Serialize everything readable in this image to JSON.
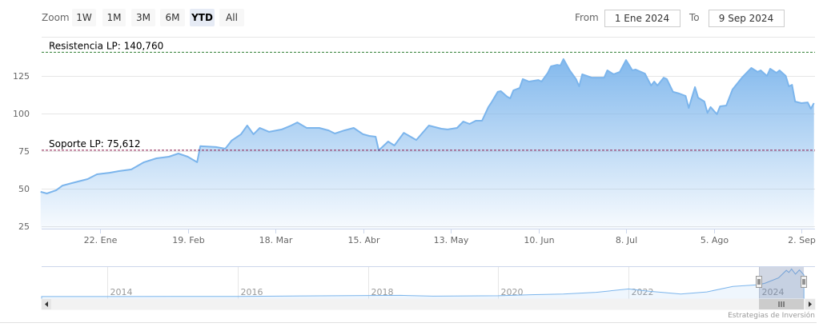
{
  "range_selector": {
    "zoom_label": "Zoom",
    "buttons": [
      {
        "label": "1W",
        "selected": false
      },
      {
        "label": "1M",
        "selected": false
      },
      {
        "label": "3M",
        "selected": false
      },
      {
        "label": "6M",
        "selected": false
      },
      {
        "label": "YTD",
        "selected": true
      },
      {
        "label": "All",
        "selected": false
      }
    ],
    "from_label": "From",
    "from_value": "1 Ene 2024",
    "to_label": "To",
    "to_value": "9 Sep 2024"
  },
  "credits": "Estrategias de Inversión",
  "colors": {
    "series": "#7cb5ec",
    "resistance": "#2e7d32",
    "support": "#8b1a4a",
    "selected_button": "#e6ebf5"
  },
  "chart_data": {
    "type": "area",
    "grid": true,
    "yticks": [
      25,
      50,
      75,
      100,
      125
    ],
    "ytick_labels": [
      "25",
      "50",
      "75",
      "100",
      "125"
    ],
    "xticks": [
      {
        "date": "2024-01-22",
        "label": "22. Ene"
      },
      {
        "date": "2024-02-19",
        "label": "19. Feb"
      },
      {
        "date": "2024-03-18",
        "label": "18. Mar"
      },
      {
        "date": "2024-04-15",
        "label": "15. Abr"
      },
      {
        "date": "2024-05-13",
        "label": "13. May"
      },
      {
        "date": "2024-06-10",
        "label": "10. Jun"
      },
      {
        "date": "2024-07-08",
        "label": "8. Jul"
      },
      {
        "date": "2024-08-05",
        "label": "5. Ago"
      },
      {
        "date": "2024-09-02",
        "label": "2. Sep"
      }
    ],
    "plot_lines": [
      {
        "label": "Resistencia LP: 140,760",
        "value": 140.76,
        "color": "#2e7d32"
      },
      {
        "label": "Soporte LP: 75,612",
        "value": 75.612,
        "color": "#8b1a4a"
      }
    ],
    "series": [
      {
        "points": [
          [
            "2024-01-03",
            47.9
          ],
          [
            "2024-01-05",
            46.8
          ],
          [
            "2024-01-08",
            49.0
          ],
          [
            "2024-01-10",
            52.1
          ],
          [
            "2024-01-13",
            53.7
          ],
          [
            "2024-01-16",
            55.3
          ],
          [
            "2024-01-18",
            56.4
          ],
          [
            "2024-01-21",
            59.6
          ],
          [
            "2024-01-25",
            60.6
          ],
          [
            "2024-01-28",
            61.7
          ],
          [
            "2024-02-01",
            62.8
          ],
          [
            "2024-02-05",
            67.6
          ],
          [
            "2024-02-09",
            70.2
          ],
          [
            "2024-02-13",
            71.3
          ],
          [
            "2024-02-16",
            73.4
          ],
          [
            "2024-02-19",
            71.3
          ],
          [
            "2024-02-22",
            67.6
          ],
          [
            "2024-02-23",
            78.3
          ],
          [
            "2024-02-28",
            77.7
          ],
          [
            "2024-03-02",
            76.6
          ],
          [
            "2024-03-04",
            82.0
          ],
          [
            "2024-03-07",
            86.2
          ],
          [
            "2024-03-09",
            92.0
          ],
          [
            "2024-03-11",
            86.2
          ],
          [
            "2024-03-13",
            90.4
          ],
          [
            "2024-03-16",
            87.8
          ],
          [
            "2024-03-20",
            89.4
          ],
          [
            "2024-03-23",
            92.0
          ],
          [
            "2024-03-25",
            94.1
          ],
          [
            "2024-03-28",
            90.4
          ],
          [
            "2024-04-01",
            90.4
          ],
          [
            "2024-04-04",
            88.8
          ],
          [
            "2024-04-06",
            86.7
          ],
          [
            "2024-04-09",
            88.8
          ],
          [
            "2024-04-12",
            90.4
          ],
          [
            "2024-04-15",
            86.2
          ],
          [
            "2024-04-17",
            85.1
          ],
          [
            "2024-04-19",
            84.6
          ],
          [
            "2024-04-20",
            75.5
          ],
          [
            "2024-04-23",
            81.4
          ],
          [
            "2024-04-25",
            78.7
          ],
          [
            "2024-04-28",
            87.2
          ],
          [
            "2024-05-02",
            82.4
          ],
          [
            "2024-05-06",
            92.0
          ],
          [
            "2024-05-10",
            89.9
          ],
          [
            "2024-05-12",
            89.4
          ],
          [
            "2024-05-15",
            90.4
          ],
          [
            "2024-05-17",
            94.7
          ],
          [
            "2024-05-19",
            93.1
          ],
          [
            "2024-05-21",
            95.2
          ],
          [
            "2024-05-23",
            95.2
          ],
          [
            "2024-05-25",
            104.3
          ],
          [
            "2024-05-26",
            107.4
          ],
          [
            "2024-05-28",
            114.4
          ],
          [
            "2024-05-29",
            114.9
          ],
          [
            "2024-05-31",
            111.2
          ],
          [
            "2024-06-01",
            110.1
          ],
          [
            "2024-06-02",
            115.4
          ],
          [
            "2024-06-04",
            117.0
          ],
          [
            "2024-06-05",
            122.9
          ],
          [
            "2024-06-07",
            121.3
          ],
          [
            "2024-06-10",
            122.3
          ],
          [
            "2024-06-11",
            121.3
          ],
          [
            "2024-06-13",
            127.1
          ],
          [
            "2024-06-14",
            131.4
          ],
          [
            "2024-06-16",
            132.4
          ],
          [
            "2024-06-17",
            131.9
          ],
          [
            "2024-06-18",
            136.2
          ],
          [
            "2024-06-20",
            128.7
          ],
          [
            "2024-06-22",
            122.9
          ],
          [
            "2024-06-23",
            118.1
          ],
          [
            "2024-06-24",
            126.1
          ],
          [
            "2024-06-27",
            123.9
          ],
          [
            "2024-07-01",
            123.9
          ],
          [
            "2024-07-02",
            128.7
          ],
          [
            "2024-07-04",
            126.1
          ],
          [
            "2024-07-06",
            127.7
          ],
          [
            "2024-07-08",
            135.6
          ],
          [
            "2024-07-10",
            128.7
          ],
          [
            "2024-07-11",
            129.3
          ],
          [
            "2024-07-14",
            126.6
          ],
          [
            "2024-07-16",
            118.6
          ],
          [
            "2024-07-17",
            121.3
          ],
          [
            "2024-07-18",
            118.6
          ],
          [
            "2024-07-20",
            123.9
          ],
          [
            "2024-07-21",
            122.9
          ],
          [
            "2024-07-23",
            114.4
          ],
          [
            "2024-07-25",
            113.3
          ],
          [
            "2024-07-27",
            111.7
          ],
          [
            "2024-07-28",
            103.7
          ],
          [
            "2024-07-30",
            117.6
          ],
          [
            "2024-07-31",
            110.6
          ],
          [
            "2024-08-02",
            108.0
          ],
          [
            "2024-08-03",
            100.5
          ],
          [
            "2024-08-04",
            104.3
          ],
          [
            "2024-08-06",
            99.5
          ],
          [
            "2024-08-07",
            104.8
          ],
          [
            "2024-08-09",
            105.3
          ],
          [
            "2024-08-11",
            116.0
          ],
          [
            "2024-08-14",
            123.9
          ],
          [
            "2024-08-17",
            130.3
          ],
          [
            "2024-08-19",
            127.7
          ],
          [
            "2024-08-20",
            128.7
          ],
          [
            "2024-08-22",
            125.0
          ],
          [
            "2024-08-23",
            129.8
          ],
          [
            "2024-08-25",
            127.1
          ],
          [
            "2024-08-26",
            128.7
          ],
          [
            "2024-08-28",
            125.0
          ],
          [
            "2024-08-29",
            118.1
          ],
          [
            "2024-08-30",
            119.1
          ],
          [
            "2024-08-31",
            108.0
          ],
          [
            "2024-09-02",
            106.9
          ],
          [
            "2024-09-04",
            107.4
          ],
          [
            "2024-09-05",
            103.2
          ],
          [
            "2024-09-06",
            106.9
          ]
        ]
      }
    ],
    "navigator": {
      "xticks": [
        "2014",
        "2016",
        "2018",
        "2020",
        "2022",
        "2024"
      ],
      "selected_range": [
        "2024-01-01",
        "2024-09-09"
      ],
      "points": [
        [
          2013.0,
          4
        ],
        [
          2014,
          4
        ],
        [
          2015,
          5
        ],
        [
          2016,
          5
        ],
        [
          2017,
          7
        ],
        [
          2018,
          9
        ],
        [
          2018.5,
          10
        ],
        [
          2019,
          6
        ],
        [
          2020,
          8
        ],
        [
          2020.5,
          13
        ],
        [
          2021,
          16
        ],
        [
          2021.5,
          24
        ],
        [
          2022,
          40
        ],
        [
          2022.3,
          30
        ],
        [
          2022.8,
          16
        ],
        [
          2023.2,
          26
        ],
        [
          2023.6,
          52
        ],
        [
          2023.9,
          58
        ],
        [
          2024.0,
          60
        ],
        [
          2024.1,
          68
        ],
        [
          2024.3,
          92
        ],
        [
          2024.42,
          128
        ],
        [
          2024.46,
          118
        ],
        [
          2024.5,
          134
        ],
        [
          2024.56,
          110
        ],
        [
          2024.62,
          130
        ],
        [
          2024.69,
          106
        ]
      ]
    }
  }
}
